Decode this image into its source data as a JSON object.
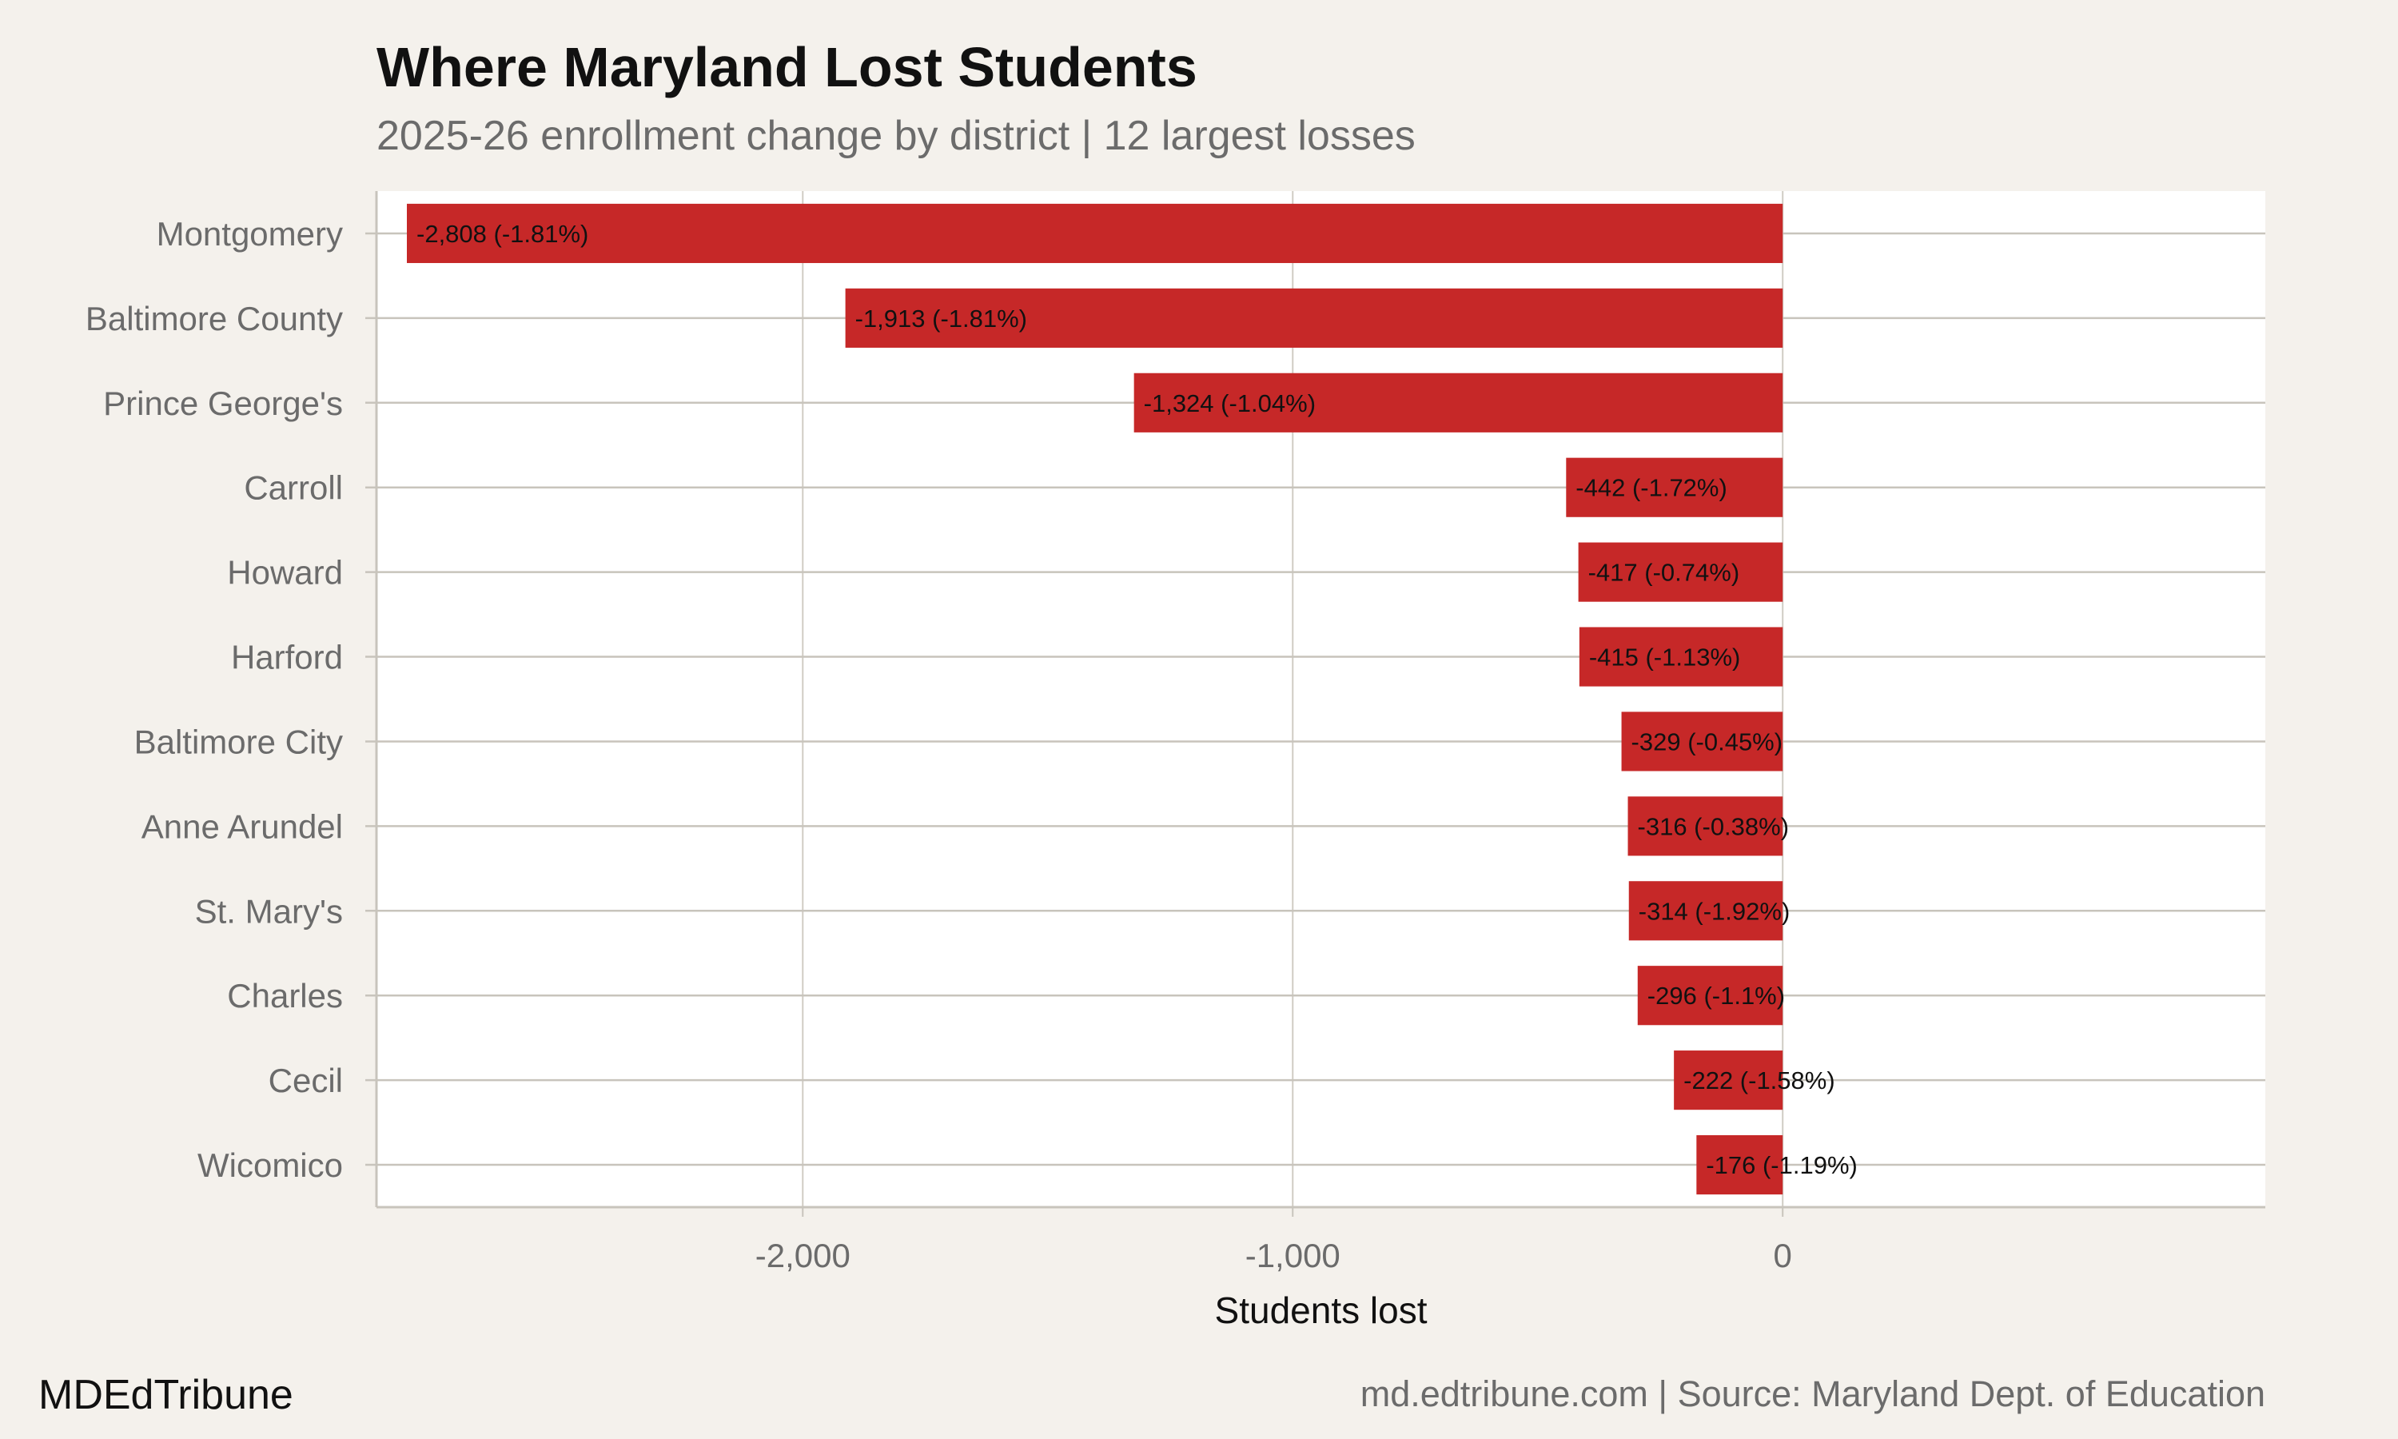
{
  "chart_data": {
    "type": "bar",
    "orientation": "horizontal",
    "title": "Where Maryland Lost Students",
    "subtitle": "2025-26 enrollment change by district | 12 largest losses",
    "xlabel": "Students lost",
    "ylabel": "",
    "xlim": [
      -2870,
      985
    ],
    "xticks": [
      -2000,
      -1000,
      0
    ],
    "xtick_labels": [
      "-2,000",
      "-1,000",
      "0"
    ],
    "grid": true,
    "bar_color": "#c62828",
    "categories": [
      "Montgomery",
      "Baltimore County",
      "Prince George's",
      "Carroll",
      "Howard",
      "Harford",
      "Baltimore City",
      "Anne Arundel",
      "St. Mary's",
      "Charles",
      "Cecil",
      "Wicomico"
    ],
    "values": [
      -2808,
      -1913,
      -1324,
      -442,
      -417,
      -415,
      -329,
      -316,
      -314,
      -296,
      -222,
      -176
    ],
    "data_labels": [
      "-2,808 (-1.81%)",
      "-1,913 (-1.81%)",
      "-1,324 (-1.04%)",
      "-442 (-1.72%)",
      "-417 (-0.74%)",
      "-415 (-1.13%)",
      "-329 (-0.45%)",
      "-316 (-0.38%)",
      "-314 (-1.92%)",
      "-296 (-1.1%)",
      "-222 (-1.58%)",
      "-176 (-1.19%)"
    ]
  },
  "footer": {
    "brand": "MDEdTribune",
    "source": "md.edtribune.com | Source: Maryland Dept. of Education"
  }
}
